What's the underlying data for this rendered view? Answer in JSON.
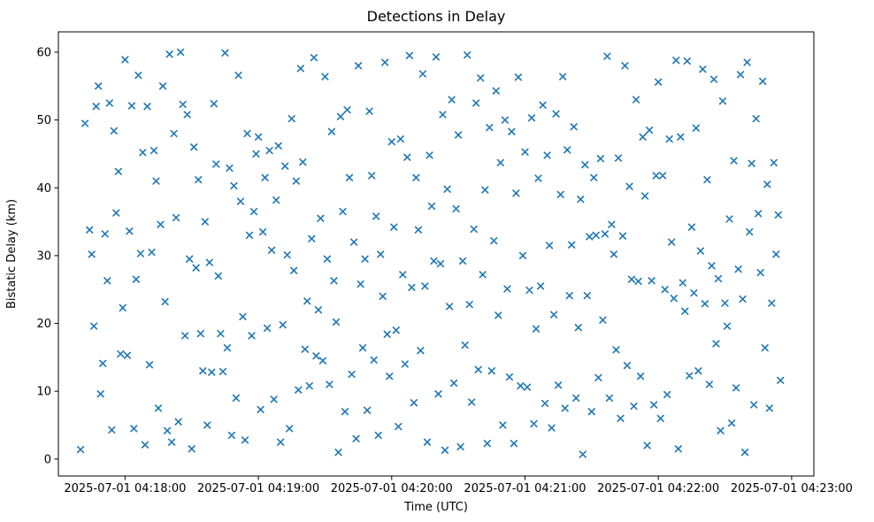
{
  "chart_data": {
    "type": "scatter",
    "title": "Detections in Delay",
    "xlabel": "Time (UTC)",
    "ylabel": "Bistatic Delay (km)",
    "marker": "x",
    "marker_color": "#1f77b4",
    "grid": false,
    "legend": "none",
    "x_unit": "seconds offset from 2025-07-01 04:18:00 UTC",
    "x_tick_labels": [
      "2025-07-01 04:18:00",
      "2025-07-01 04:19:00",
      "2025-07-01 04:20:00",
      "2025-07-01 04:21:00",
      "2025-07-01 04:22:00",
      "2025-07-01 04:23:00"
    ],
    "x_tick_seconds": [
      0,
      60,
      120,
      180,
      240,
      300
    ],
    "xlim_seconds": [
      -30,
      310
    ],
    "y_ticks": [
      0,
      10,
      20,
      30,
      40,
      50,
      60
    ],
    "ylim": [
      -2.5,
      63
    ],
    "points": [
      [
        -20,
        1.4
      ],
      [
        -18,
        49.5
      ],
      [
        -16,
        33.8
      ],
      [
        -15,
        30.2
      ],
      [
        -14,
        19.6
      ],
      [
        -13,
        52.0
      ],
      [
        -12,
        55.0
      ],
      [
        -11,
        9.6
      ],
      [
        -10,
        14.1
      ],
      [
        -9,
        33.2
      ],
      [
        -8,
        26.3
      ],
      [
        -7,
        52.5
      ],
      [
        -6,
        4.3
      ],
      [
        -5,
        48.4
      ],
      [
        -4,
        36.3
      ],
      [
        -3,
        42.4
      ],
      [
        -2,
        15.5
      ],
      [
        -1,
        22.3
      ],
      [
        0,
        58.9
      ],
      [
        1,
        15.3
      ],
      [
        2,
        33.6
      ],
      [
        3,
        52.1
      ],
      [
        4,
        4.5
      ],
      [
        5,
        26.5
      ],
      [
        6,
        56.6
      ],
      [
        7,
        30.3
      ],
      [
        8,
        45.2
      ],
      [
        9,
        2.1
      ],
      [
        10,
        52.0
      ],
      [
        11,
        13.9
      ],
      [
        12,
        30.5
      ],
      [
        13,
        45.5
      ],
      [
        14,
        41.0
      ],
      [
        15,
        7.5
      ],
      [
        16,
        34.6
      ],
      [
        17,
        55.0
      ],
      [
        18,
        23.2
      ],
      [
        19,
        4.2
      ],
      [
        20,
        59.7
      ],
      [
        21,
        2.5
      ],
      [
        22,
        48.0
      ],
      [
        23,
        35.6
      ],
      [
        24,
        5.5
      ],
      [
        25,
        60.0
      ],
      [
        26,
        52.3
      ],
      [
        27,
        18.2
      ],
      [
        28,
        50.8
      ],
      [
        29,
        29.5
      ],
      [
        30,
        1.5
      ],
      [
        31,
        46.0
      ],
      [
        32,
        28.2
      ],
      [
        33,
        41.2
      ],
      [
        34,
        18.5
      ],
      [
        35,
        13.0
      ],
      [
        36,
        35.0
      ],
      [
        37,
        5.0
      ],
      [
        38,
        29.0
      ],
      [
        39,
        12.8
      ],
      [
        40,
        52.4
      ],
      [
        41,
        43.5
      ],
      [
        42,
        27.0
      ],
      [
        43,
        18.5
      ],
      [
        44,
        12.9
      ],
      [
        45,
        59.9
      ],
      [
        46,
        16.4
      ],
      [
        47,
        42.9
      ],
      [
        48,
        3.5
      ],
      [
        49,
        40.3
      ],
      [
        50,
        9.0
      ],
      [
        51,
        56.6
      ],
      [
        52,
        38.0
      ],
      [
        53,
        21.0
      ],
      [
        54,
        2.8
      ],
      [
        55,
        48.0
      ],
      [
        56,
        33.0
      ],
      [
        57,
        18.2
      ],
      [
        58,
        36.5
      ],
      [
        59,
        45.0
      ],
      [
        60,
        47.5
      ],
      [
        61,
        7.3
      ],
      [
        62,
        33.5
      ],
      [
        63,
        41.5
      ],
      [
        64,
        19.3
      ],
      [
        65,
        45.5
      ],
      [
        66,
        30.8
      ],
      [
        67,
        8.8
      ],
      [
        68,
        38.2
      ],
      [
        69,
        46.2
      ],
      [
        70,
        2.5
      ],
      [
        71,
        19.8
      ],
      [
        72,
        43.2
      ],
      [
        73,
        30.1
      ],
      [
        74,
        4.5
      ],
      [
        75,
        50.2
      ],
      [
        76,
        27.8
      ],
      [
        77,
        41.0
      ],
      [
        78,
        10.2
      ],
      [
        79,
        57.6
      ],
      [
        80,
        43.8
      ],
      [
        81,
        16.2
      ],
      [
        82,
        23.3
      ],
      [
        83,
        10.8
      ],
      [
        84,
        32.5
      ],
      [
        85,
        59.2
      ],
      [
        86,
        15.2
      ],
      [
        87,
        22.0
      ],
      [
        88,
        35.5
      ],
      [
        89,
        14.5
      ],
      [
        90,
        56.4
      ],
      [
        91,
        29.5
      ],
      [
        92,
        11.0
      ],
      [
        93,
        48.3
      ],
      [
        94,
        26.3
      ],
      [
        95,
        20.2
      ],
      [
        96,
        1.0
      ],
      [
        97,
        50.5
      ],
      [
        98,
        36.5
      ],
      [
        99,
        7.0
      ],
      [
        100,
        51.5
      ],
      [
        101,
        41.5
      ],
      [
        102,
        12.5
      ],
      [
        103,
        32.0
      ],
      [
        104,
        3.0
      ],
      [
        105,
        58.0
      ],
      [
        106,
        25.8
      ],
      [
        107,
        16.4
      ],
      [
        108,
        29.5
      ],
      [
        109,
        7.2
      ],
      [
        110,
        51.3
      ],
      [
        111,
        41.8
      ],
      [
        112,
        14.6
      ],
      [
        113,
        35.8
      ],
      [
        114,
        3.5
      ],
      [
        115,
        30.2
      ],
      [
        116,
        24.0
      ],
      [
        117,
        58.5
      ],
      [
        118,
        18.4
      ],
      [
        119,
        12.2
      ],
      [
        120,
        46.8
      ],
      [
        121,
        34.2
      ],
      [
        122,
        19.0
      ],
      [
        123,
        4.8
      ],
      [
        124,
        47.2
      ],
      [
        125,
        27.2
      ],
      [
        126,
        14.0
      ],
      [
        127,
        44.5
      ],
      [
        128,
        59.5
      ],
      [
        129,
        25.3
      ],
      [
        130,
        8.3
      ],
      [
        131,
        41.5
      ],
      [
        132,
        33.8
      ],
      [
        133,
        16.0
      ],
      [
        134,
        56.8
      ],
      [
        135,
        25.5
      ],
      [
        136,
        2.5
      ],
      [
        137,
        44.8
      ],
      [
        138,
        37.3
      ],
      [
        139,
        29.2
      ],
      [
        140,
        59.3
      ],
      [
        141,
        9.6
      ],
      [
        142,
        28.8
      ],
      [
        143,
        50.8
      ],
      [
        144,
        1.3
      ],
      [
        145,
        39.8
      ],
      [
        146,
        22.5
      ],
      [
        147,
        53.0
      ],
      [
        148,
        11.2
      ],
      [
        149,
        36.9
      ],
      [
        150,
        47.8
      ],
      [
        151,
        1.8
      ],
      [
        152,
        29.2
      ],
      [
        153,
        16.8
      ],
      [
        154,
        59.6
      ],
      [
        155,
        22.8
      ],
      [
        156,
        8.4
      ],
      [
        157,
        33.9
      ],
      [
        158,
        52.5
      ],
      [
        159,
        13.2
      ],
      [
        160,
        56.2
      ],
      [
        161,
        27.2
      ],
      [
        162,
        39.7
      ],
      [
        163,
        2.3
      ],
      [
        164,
        48.9
      ],
      [
        165,
        13.0
      ],
      [
        166,
        32.2
      ],
      [
        167,
        54.3
      ],
      [
        168,
        21.2
      ],
      [
        169,
        43.7
      ],
      [
        170,
        5.0
      ],
      [
        171,
        50.0
      ],
      [
        172,
        25.1
      ],
      [
        173,
        12.1
      ],
      [
        174,
        48.3
      ],
      [
        175,
        2.3
      ],
      [
        176,
        39.2
      ],
      [
        177,
        56.3
      ],
      [
        178,
        10.8
      ],
      [
        179,
        30.0
      ],
      [
        180,
        45.3
      ],
      [
        181,
        10.6
      ],
      [
        182,
        24.9
      ],
      [
        183,
        50.3
      ],
      [
        184,
        5.2
      ],
      [
        185,
        19.2
      ],
      [
        186,
        41.4
      ],
      [
        187,
        25.5
      ],
      [
        188,
        52.2
      ],
      [
        189,
        8.2
      ],
      [
        190,
        44.8
      ],
      [
        191,
        31.5
      ],
      [
        192,
        4.6
      ],
      [
        193,
        21.3
      ],
      [
        194,
        50.9
      ],
      [
        195,
        10.9
      ],
      [
        196,
        39.0
      ],
      [
        197,
        56.4
      ],
      [
        198,
        7.5
      ],
      [
        199,
        45.6
      ],
      [
        200,
        24.1
      ],
      [
        201,
        31.6
      ],
      [
        202,
        49.0
      ],
      [
        203,
        9.0
      ],
      [
        204,
        19.4
      ],
      [
        205,
        38.3
      ],
      [
        206,
        0.7
      ],
      [
        207,
        43.4
      ],
      [
        208,
        24.1
      ],
      [
        209,
        32.8
      ],
      [
        210,
        7.0
      ],
      [
        211,
        41.5
      ],
      [
        212,
        33.0
      ],
      [
        213,
        12.0
      ],
      [
        214,
        44.3
      ],
      [
        215,
        20.5
      ],
      [
        216,
        33.2
      ],
      [
        217,
        59.4
      ],
      [
        218,
        9.0
      ],
      [
        219,
        34.6
      ],
      [
        220,
        30.2
      ],
      [
        221,
        16.1
      ],
      [
        222,
        44.4
      ],
      [
        223,
        6.0
      ],
      [
        224,
        32.9
      ],
      [
        225,
        58.0
      ],
      [
        226,
        13.8
      ],
      [
        227,
        40.2
      ],
      [
        228,
        26.5
      ],
      [
        229,
        7.8
      ],
      [
        230,
        53.0
      ],
      [
        231,
        26.2
      ],
      [
        232,
        12.2
      ],
      [
        233,
        47.5
      ],
      [
        234,
        38.8
      ],
      [
        235,
        2.0
      ],
      [
        236,
        48.5
      ],
      [
        237,
        26.3
      ],
      [
        238,
        8.0
      ],
      [
        239,
        41.8
      ],
      [
        240,
        55.6
      ],
      [
        241,
        6.0
      ],
      [
        242,
        41.8
      ],
      [
        243,
        25.0
      ],
      [
        244,
        9.5
      ],
      [
        245,
        47.2
      ],
      [
        246,
        32.0
      ],
      [
        247,
        23.7
      ],
      [
        248,
        58.8
      ],
      [
        249,
        1.5
      ],
      [
        250,
        47.5
      ],
      [
        251,
        26.0
      ],
      [
        252,
        21.8
      ],
      [
        253,
        58.7
      ],
      [
        254,
        12.3
      ],
      [
        255,
        34.2
      ],
      [
        256,
        24.5
      ],
      [
        257,
        48.8
      ],
      [
        258,
        13.0
      ],
      [
        259,
        30.7
      ],
      [
        260,
        57.5
      ],
      [
        261,
        22.9
      ],
      [
        262,
        41.2
      ],
      [
        263,
        11.0
      ],
      [
        264,
        28.5
      ],
      [
        265,
        56.0
      ],
      [
        266,
        17.0
      ],
      [
        267,
        26.6
      ],
      [
        268,
        4.2
      ],
      [
        269,
        52.8
      ],
      [
        270,
        23.0
      ],
      [
        271,
        19.6
      ],
      [
        272,
        35.4
      ],
      [
        273,
        5.3
      ],
      [
        274,
        44.0
      ],
      [
        275,
        10.5
      ],
      [
        276,
        28.0
      ],
      [
        277,
        56.7
      ],
      [
        278,
        23.6
      ],
      [
        279,
        1.0
      ],
      [
        280,
        58.5
      ],
      [
        281,
        33.5
      ],
      [
        282,
        43.6
      ],
      [
        283,
        8.0
      ],
      [
        284,
        50.2
      ],
      [
        285,
        36.2
      ],
      [
        286,
        27.5
      ],
      [
        287,
        55.7
      ],
      [
        288,
        16.4
      ],
      [
        289,
        40.5
      ],
      [
        290,
        7.5
      ],
      [
        291,
        23.0
      ],
      [
        292,
        43.7
      ],
      [
        293,
        30.2
      ],
      [
        294,
        36.0
      ],
      [
        295,
        11.6
      ]
    ]
  }
}
